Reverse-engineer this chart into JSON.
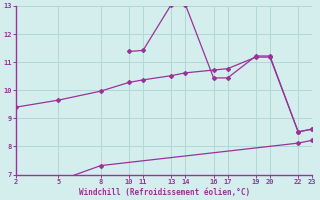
{
  "xlabel": "Windchill (Refroidissement éolien,°C)",
  "bg_color": "#d4eeed",
  "grid_color": "#b0d8d5",
  "line_color": "#993399",
  "border_color": "#993399",
  "xlim": [
    2,
    23
  ],
  "ylim": [
    7,
    13
  ],
  "xticks": [
    2,
    5,
    8,
    10,
    11,
    13,
    14,
    16,
    17,
    19,
    20,
    22,
    23
  ],
  "yticks": [
    7,
    8,
    9,
    10,
    11,
    12,
    13
  ],
  "line1_x": [
    2,
    5,
    8,
    10,
    11,
    13,
    14,
    16,
    17,
    19,
    20,
    22,
    23
  ],
  "line1_y": [
    9.4,
    9.65,
    9.97,
    10.28,
    10.37,
    10.52,
    10.62,
    10.72,
    10.77,
    11.18,
    11.18,
    8.52,
    8.62
  ],
  "line2_x": [
    10,
    11,
    13,
    14,
    16,
    17,
    19,
    20,
    22,
    23
  ],
  "line2_y": [
    11.38,
    11.42,
    13.05,
    13.05,
    10.44,
    10.44,
    11.22,
    11.22,
    8.52,
    8.62
  ],
  "line3_x": [
    5,
    8,
    22,
    23
  ],
  "line3_y": [
    6.78,
    7.32,
    8.12,
    8.22
  ]
}
